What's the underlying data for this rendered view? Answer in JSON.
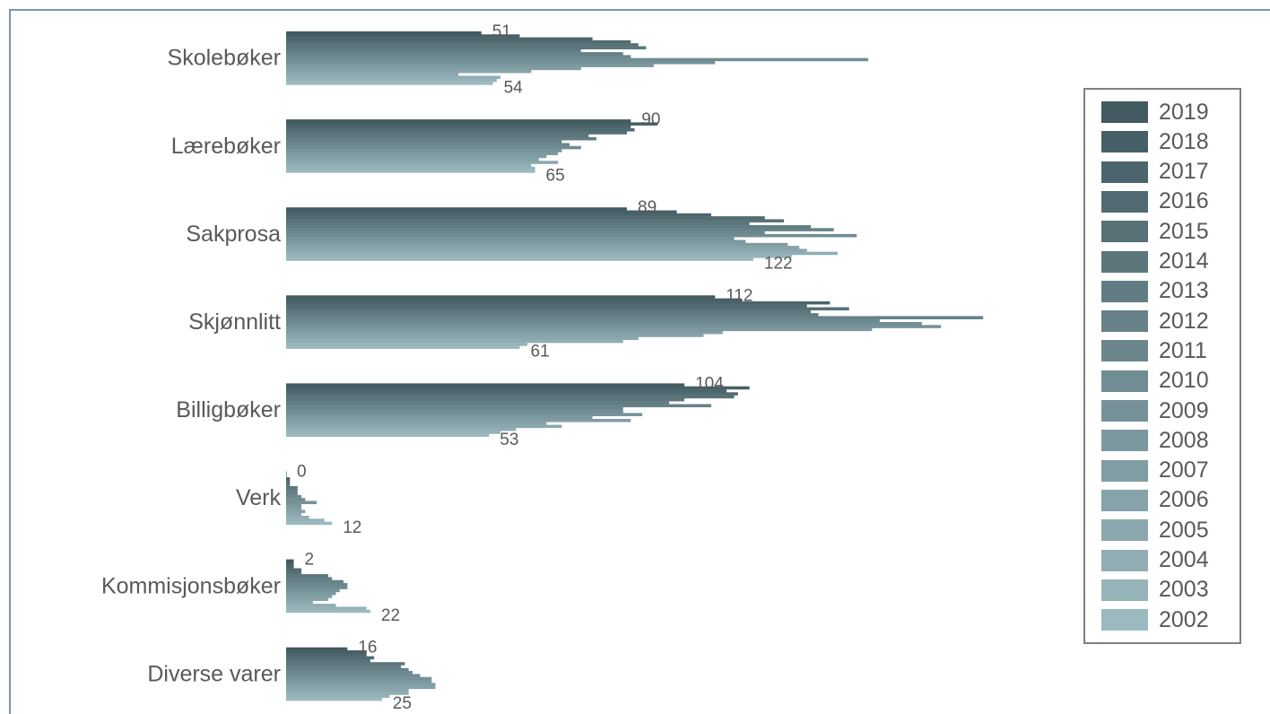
{
  "chart_data": {
    "type": "bar",
    "orientation": "horizontal",
    "categories": [
      "Skolebøker",
      "Lærebøker",
      "Sakprosa",
      "Skjønnlitt",
      "Billigbøker",
      "Verk",
      "Kommisjonsbøker",
      "Diverse varer"
    ],
    "series": [
      {
        "name": "2019",
        "color": "#425a60",
        "values": [
          51,
          90,
          89,
          112,
          104,
          0,
          2,
          16
        ]
      },
      {
        "name": "2018",
        "color": "#475f66",
        "values": [
          61,
          97,
          102,
          119,
          121,
          0,
          2,
          21
        ]
      },
      {
        "name": "2017",
        "color": "#4c656c",
        "values": [
          80,
          90,
          111,
          142,
          115,
          1,
          2,
          21
        ]
      },
      {
        "name": "2016",
        "color": "#526b72",
        "values": [
          90,
          91,
          125,
          136,
          118,
          1,
          4,
          23
        ]
      },
      {
        "name": "2015",
        "color": "#577177",
        "values": [
          92,
          89,
          130,
          147,
          117,
          1,
          4,
          22
        ]
      },
      {
        "name": "2014",
        "color": "#5c767c",
        "values": [
          94,
          79,
          121,
          137,
          104,
          3,
          11,
          31
        ]
      },
      {
        "name": "2013",
        "color": "#617c82",
        "values": [
          77,
          81,
          137,
          139,
          100,
          3,
          12,
          30
        ]
      },
      {
        "name": "2012",
        "color": "#668187",
        "values": [
          88,
          72,
          143,
          182,
          111,
          3,
          15,
          32
        ]
      },
      {
        "name": "2011",
        "color": "#6b878d",
        "values": [
          90,
          74,
          125,
          155,
          88,
          4,
          16,
          33
        ]
      },
      {
        "name": "2010",
        "color": "#718c93",
        "values": [
          152,
          77,
          149,
          166,
          88,
          5,
          16,
          35
        ]
      },
      {
        "name": "2009",
        "color": "#769298",
        "values": [
          112,
          72,
          117,
          171,
          93,
          8,
          14,
          38
        ]
      },
      {
        "name": "2008",
        "color": "#7b989e",
        "values": [
          96,
          71,
          120,
          153,
          80,
          4,
          13,
          38
        ]
      },
      {
        "name": "2007",
        "color": "#809da3",
        "values": [
          77,
          68,
          131,
          114,
          90,
          4,
          12,
          39
        ]
      },
      {
        "name": "2006",
        "color": "#86a3a9",
        "values": [
          64,
          66,
          134,
          109,
          68,
          5,
          11,
          39
        ]
      },
      {
        "name": "2005",
        "color": "#8ba8ae",
        "values": [
          45,
          71,
          136,
          92,
          72,
          4,
          7,
          32
        ]
      },
      {
        "name": "2004",
        "color": "#90aeb4",
        "values": [
          56,
          64,
          144,
          88,
          60,
          6,
          13,
          32
        ]
      },
      {
        "name": "2003",
        "color": "#95b3b9",
        "values": [
          55,
          65,
          132,
          63,
          56,
          10,
          21,
          27
        ]
      },
      {
        "name": "2002",
        "color": "#9bbac0",
        "values": [
          54,
          65,
          122,
          61,
          53,
          12,
          22,
          25
        ]
      }
    ],
    "data_labels": [
      {
        "category": "Skolebøker",
        "top": "51",
        "bottom": "54"
      },
      {
        "category": "Lærebøker",
        "top": "90",
        "bottom": "65"
      },
      {
        "category": "Sakprosa",
        "top": "89",
        "bottom": "122"
      },
      {
        "category": "Skjønnlitt",
        "top": "112",
        "bottom": "61"
      },
      {
        "category": "Billigbøker",
        "top": "104",
        "bottom": "53"
      },
      {
        "category": "Verk",
        "top": "0",
        "bottom": "12"
      },
      {
        "category": "Kommisjonsbøker",
        "top": "2",
        "bottom": "22"
      },
      {
        "category": "Diverse varer",
        "top": "16",
        "bottom": "25"
      }
    ],
    "xlim": [
      0,
      182
    ],
    "grid": false,
    "legend_position": "right"
  }
}
